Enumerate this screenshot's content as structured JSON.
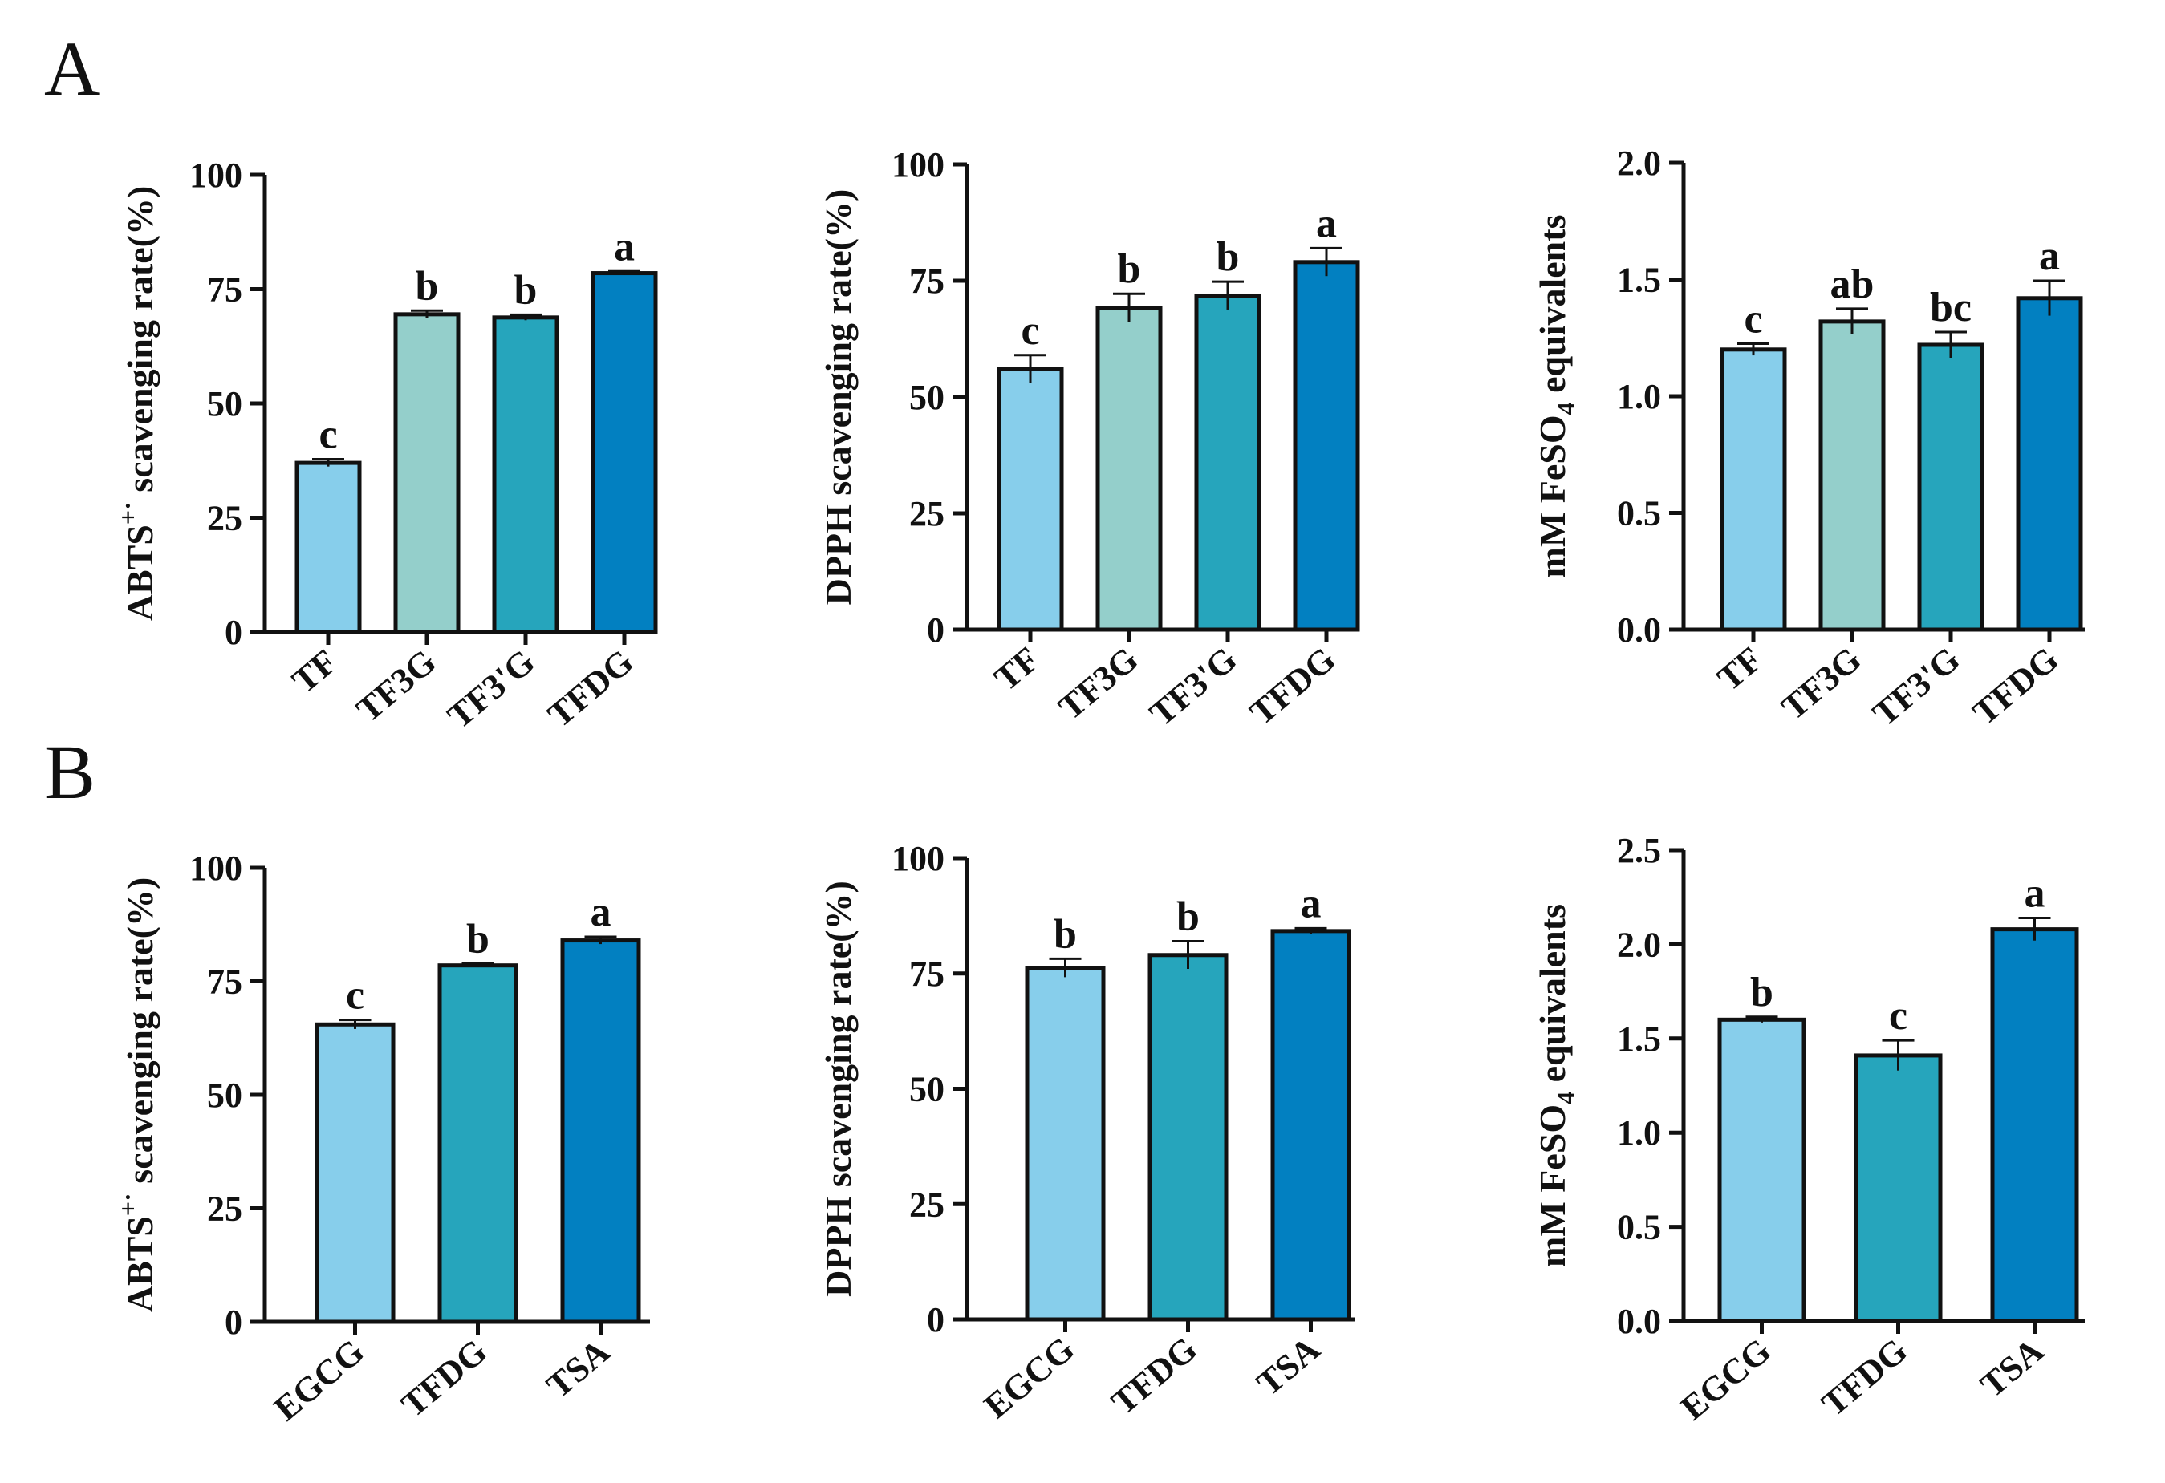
{
  "panel_labels": [
    "A",
    "B"
  ],
  "chart_data": [
    {
      "type": "bar",
      "panel": "A",
      "ylabel_main": "ABTS",
      "ylabel_sup": "+·",
      "ylabel_rest": " scavenging rate(%)",
      "categories": [
        "TF",
        "TF3G",
        "TF3'G",
        "TFDG"
      ],
      "values": [
        37,
        69.5,
        68.8,
        78.5
      ],
      "errors": [
        0.8,
        0.8,
        0.6,
        0.4
      ],
      "significance": [
        "c",
        "b",
        "b",
        "a"
      ],
      "colors": [
        "#87ceeb",
        "#94cfcb",
        "#26a5bc",
        "#0280c1"
      ],
      "ylim": [
        0,
        100
      ],
      "yticks": [
        "0",
        "25",
        "50",
        "75",
        "100"
      ],
      "ytick_values": [
        0,
        25,
        50,
        75,
        100
      ]
    },
    {
      "type": "bar",
      "panel": "A",
      "ylabel": "DPPH scavenging rate(%)",
      "categories": [
        "TF",
        "TF3G",
        "TF3'G",
        "TFDG"
      ],
      "values": [
        56,
        69.2,
        71.8,
        79
      ],
      "errors": [
        3,
        3,
        3,
        3
      ],
      "significance": [
        "c",
        "b",
        "b",
        "a"
      ],
      "colors": [
        "#87ceeb",
        "#94cfcb",
        "#26a5bc",
        "#0280c1"
      ],
      "ylim": [
        0,
        100
      ],
      "yticks": [
        "0",
        "25",
        "50",
        "75",
        "100"
      ],
      "ytick_values": [
        0,
        25,
        50,
        75,
        100
      ]
    },
    {
      "type": "bar",
      "panel": "A",
      "ylabel_main": "mM FeSO",
      "ylabel_sub": "4",
      "ylabel_rest": " equivalents",
      "categories": [
        "TF",
        "TF3G",
        "TF3'G",
        "TFDG"
      ],
      "values": [
        1.2,
        1.32,
        1.22,
        1.42
      ],
      "errors": [
        0.025,
        0.055,
        0.055,
        0.075
      ],
      "significance": [
        "c",
        "ab",
        "bc",
        "a"
      ],
      "colors": [
        "#87ceeb",
        "#94cfcb",
        "#26a5bc",
        "#0280c1"
      ],
      "ylim": [
        0,
        2.0
      ],
      "yticks": [
        "0.0",
        "0.5",
        "1.0",
        "1.5",
        "2.0"
      ],
      "ytick_values": [
        0,
        0.5,
        1.0,
        1.5,
        2.0
      ]
    },
    {
      "type": "bar",
      "panel": "B",
      "ylabel_main": "ABTS",
      "ylabel_sup": "+·",
      "ylabel_rest": " scavenging rate(%)",
      "categories": [
        "EGCG",
        "TFDG",
        "TSA"
      ],
      "values": [
        65.5,
        78.5,
        84
      ],
      "errors": [
        1,
        0.4,
        0.8
      ],
      "significance": [
        "c",
        "b",
        "a"
      ],
      "colors": [
        "#87ceeb",
        "#26a5bc",
        "#0280c1"
      ],
      "ylim": [
        0,
        100
      ],
      "yticks": [
        "0",
        "25",
        "50",
        "75",
        "100"
      ],
      "ytick_values": [
        0,
        25,
        50,
        75,
        100
      ]
    },
    {
      "type": "bar",
      "panel": "B",
      "ylabel": "DPPH scavenging rate(%)",
      "categories": [
        "EGCG",
        "TFDG",
        "TSA"
      ],
      "values": [
        76.2,
        79,
        84.2
      ],
      "errors": [
        2,
        3,
        0.6
      ],
      "significance": [
        "b",
        "b",
        "a"
      ],
      "colors": [
        "#87ceeb",
        "#26a5bc",
        "#0280c1"
      ],
      "ylim": [
        0,
        100
      ],
      "yticks": [
        "0",
        "25",
        "50",
        "75",
        "100"
      ],
      "ytick_values": [
        0,
        25,
        50,
        75,
        100
      ]
    },
    {
      "type": "bar",
      "panel": "B",
      "ylabel_main": "mM FeSO",
      "ylabel_sub": "4",
      "ylabel_rest": " equivalents",
      "categories": [
        "EGCG",
        "TFDG",
        "TSA"
      ],
      "values": [
        1.6,
        1.41,
        2.08
      ],
      "errors": [
        0.015,
        0.08,
        0.06
      ],
      "significance": [
        "b",
        "c",
        "a"
      ],
      "colors": [
        "#87ceeb",
        "#26a5bc",
        "#0280c1"
      ],
      "ylim": [
        0,
        2.5
      ],
      "yticks": [
        "0.0",
        "0.5",
        "1.0",
        "1.5",
        "2.0",
        "2.5"
      ],
      "ytick_values": [
        0,
        0.5,
        1.0,
        1.5,
        2.0,
        2.5
      ]
    }
  ]
}
